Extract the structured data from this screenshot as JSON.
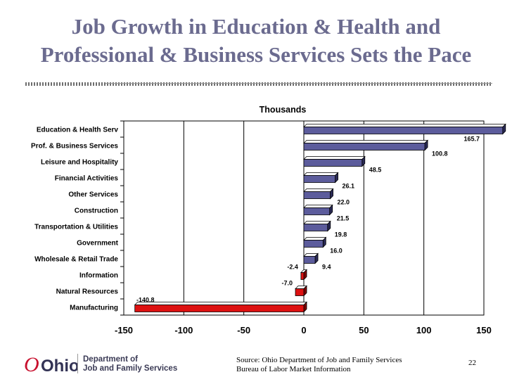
{
  "slide": {
    "title_line1": "Job Growth in Education & Health and",
    "title_line2": "Professional & Business Services Sets the Pace",
    "logo_text": "Ohio",
    "dept_line1": "Department of",
    "dept_line2": "Job and Family Services",
    "source_line1": "Source: Ohio Department of Job and Family Services",
    "source_line2": "Bureau of Labor Market Information",
    "page_number": "22"
  },
  "colors": {
    "positive_bar": "#5c5c9c",
    "negative_bar": "#dd1111",
    "bar_side": "#2a2a55",
    "negative_side": "#7a0000",
    "logo_red": "#c8102e"
  },
  "chart_data": {
    "type": "bar",
    "orientation": "horizontal",
    "title": "Thousands",
    "categories": [
      "Education & Health Serv",
      "Prof. & Business Services",
      "Leisure and Hospitality",
      "Financial Activities",
      "Other Services",
      "Construction",
      "Transportation & Utilities",
      "Government",
      "Wholesale & Retail Trade",
      "Information",
      "Natural Resources",
      "Manufacturing"
    ],
    "values": [
      165.7,
      100.8,
      48.5,
      26.1,
      22.0,
      21.5,
      19.8,
      16.0,
      9.4,
      -2.4,
      -7.0,
      -140.8
    ],
    "value_labels": [
      "165.7",
      "100.8",
      "48.5",
      "26.1",
      "22.0",
      "21.5",
      "19.8",
      "16.0",
      "9.4",
      "-2.4",
      "-7.0",
      "-140.8"
    ],
    "xlim": [
      -150,
      150
    ],
    "xticks": [
      -150,
      -100,
      -50,
      0,
      50,
      100,
      150
    ],
    "xtick_labels": [
      "-150",
      "-100",
      "-50",
      "0",
      "50",
      "100",
      "150"
    ],
    "gridlines": "vertical",
    "legend": "none"
  }
}
